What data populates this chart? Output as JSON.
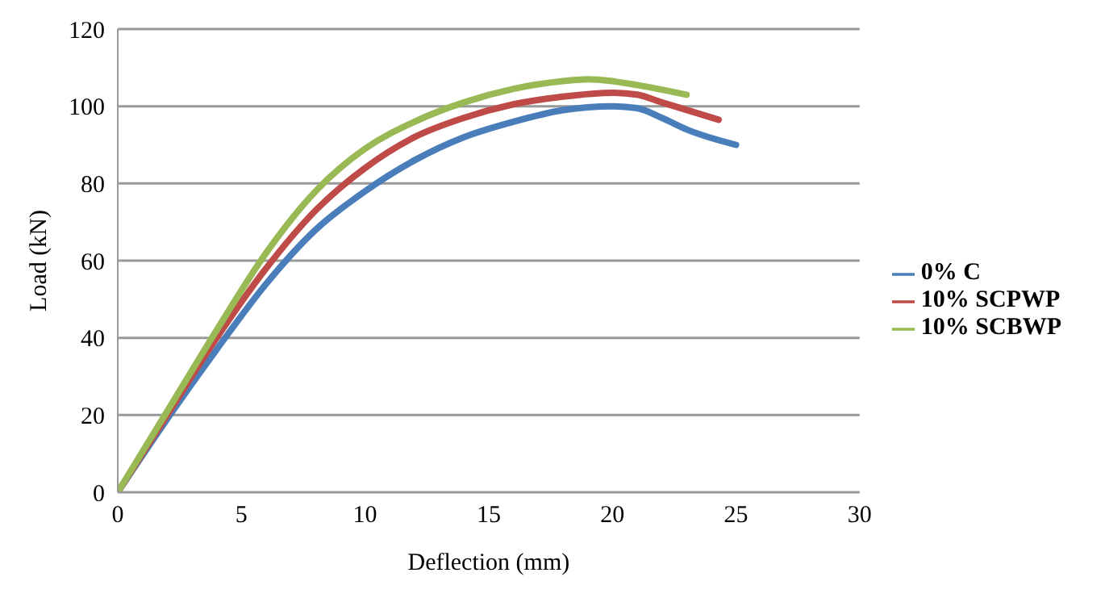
{
  "chart_data": {
    "type": "line",
    "xlabel": "Deflection (mm)",
    "ylabel": "Load (kN)",
    "xlim": [
      0,
      30
    ],
    "ylim": [
      0,
      120
    ],
    "xticks": [
      0,
      5,
      10,
      15,
      20,
      25,
      30
    ],
    "yticks": [
      0,
      20,
      40,
      60,
      80,
      100,
      120
    ],
    "grid": "y",
    "legend": "right",
    "marker": "none",
    "line_style": "solid",
    "series": [
      {
        "name": "0% C",
        "color": "#4a7ebb",
        "x": [
          0,
          2,
          4,
          6,
          8,
          10,
          12,
          14,
          16,
          18,
          20,
          21,
          22,
          23,
          25
        ],
        "values": [
          0,
          19,
          37,
          54,
          68,
          78,
          86,
          92,
          96,
          99,
          100,
          99.5,
          97,
          94,
          90
        ]
      },
      {
        "name": "10% SCPWP",
        "color": "#be4b48",
        "x": [
          0,
          2,
          4,
          6,
          8,
          10,
          12,
          14,
          16,
          18,
          20,
          21,
          22,
          24.3
        ],
        "values": [
          0,
          20,
          40,
          58,
          73,
          84,
          92,
          97,
          100.5,
          102.5,
          103.5,
          103,
          101,
          96.5
        ]
      },
      {
        "name": "10% SCBWP",
        "color": "#98b954",
        "x": [
          0,
          2,
          4,
          6,
          8,
          10,
          12,
          14,
          16,
          18,
          19,
          20,
          21,
          23
        ],
        "values": [
          0,
          21,
          42,
          62,
          78,
          89,
          96,
          101,
          104.5,
          106.5,
          107,
          106.5,
          105.5,
          103
        ]
      }
    ]
  }
}
